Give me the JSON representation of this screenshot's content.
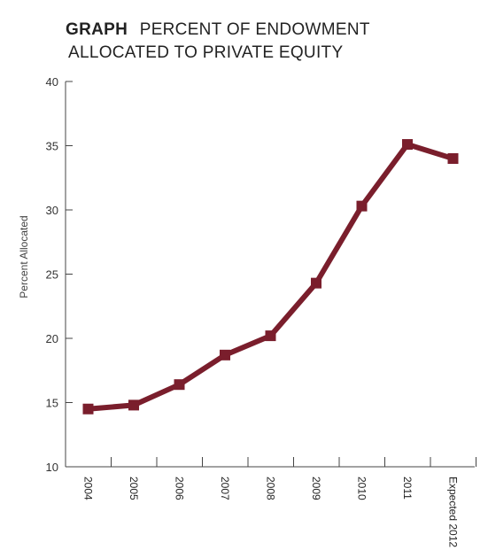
{
  "title": {
    "strong": "GRAPH",
    "line1": "PERCENT OF ENDOWMENT",
    "line2": "ALLOCATED TO PRIVATE EQUITY"
  },
  "chart_data": {
    "type": "line",
    "categories": [
      "2004",
      "2005",
      "2006",
      "2007",
      "2008",
      "2009",
      "2010",
      "2011",
      "Expected 2012"
    ],
    "series": [
      {
        "values": [
          14.5,
          14.8,
          16.4,
          18.7,
          20.2,
          24.3,
          30.3,
          35.1,
          34.0
        ]
      }
    ],
    "ylabel": "Percent Allocated",
    "xlabel": "",
    "ylim": [
      10,
      40
    ],
    "yticks": [
      10,
      15,
      20,
      25,
      30,
      35,
      40
    ],
    "grid": false,
    "marker": "square",
    "line_color": "#7a1e2c"
  }
}
